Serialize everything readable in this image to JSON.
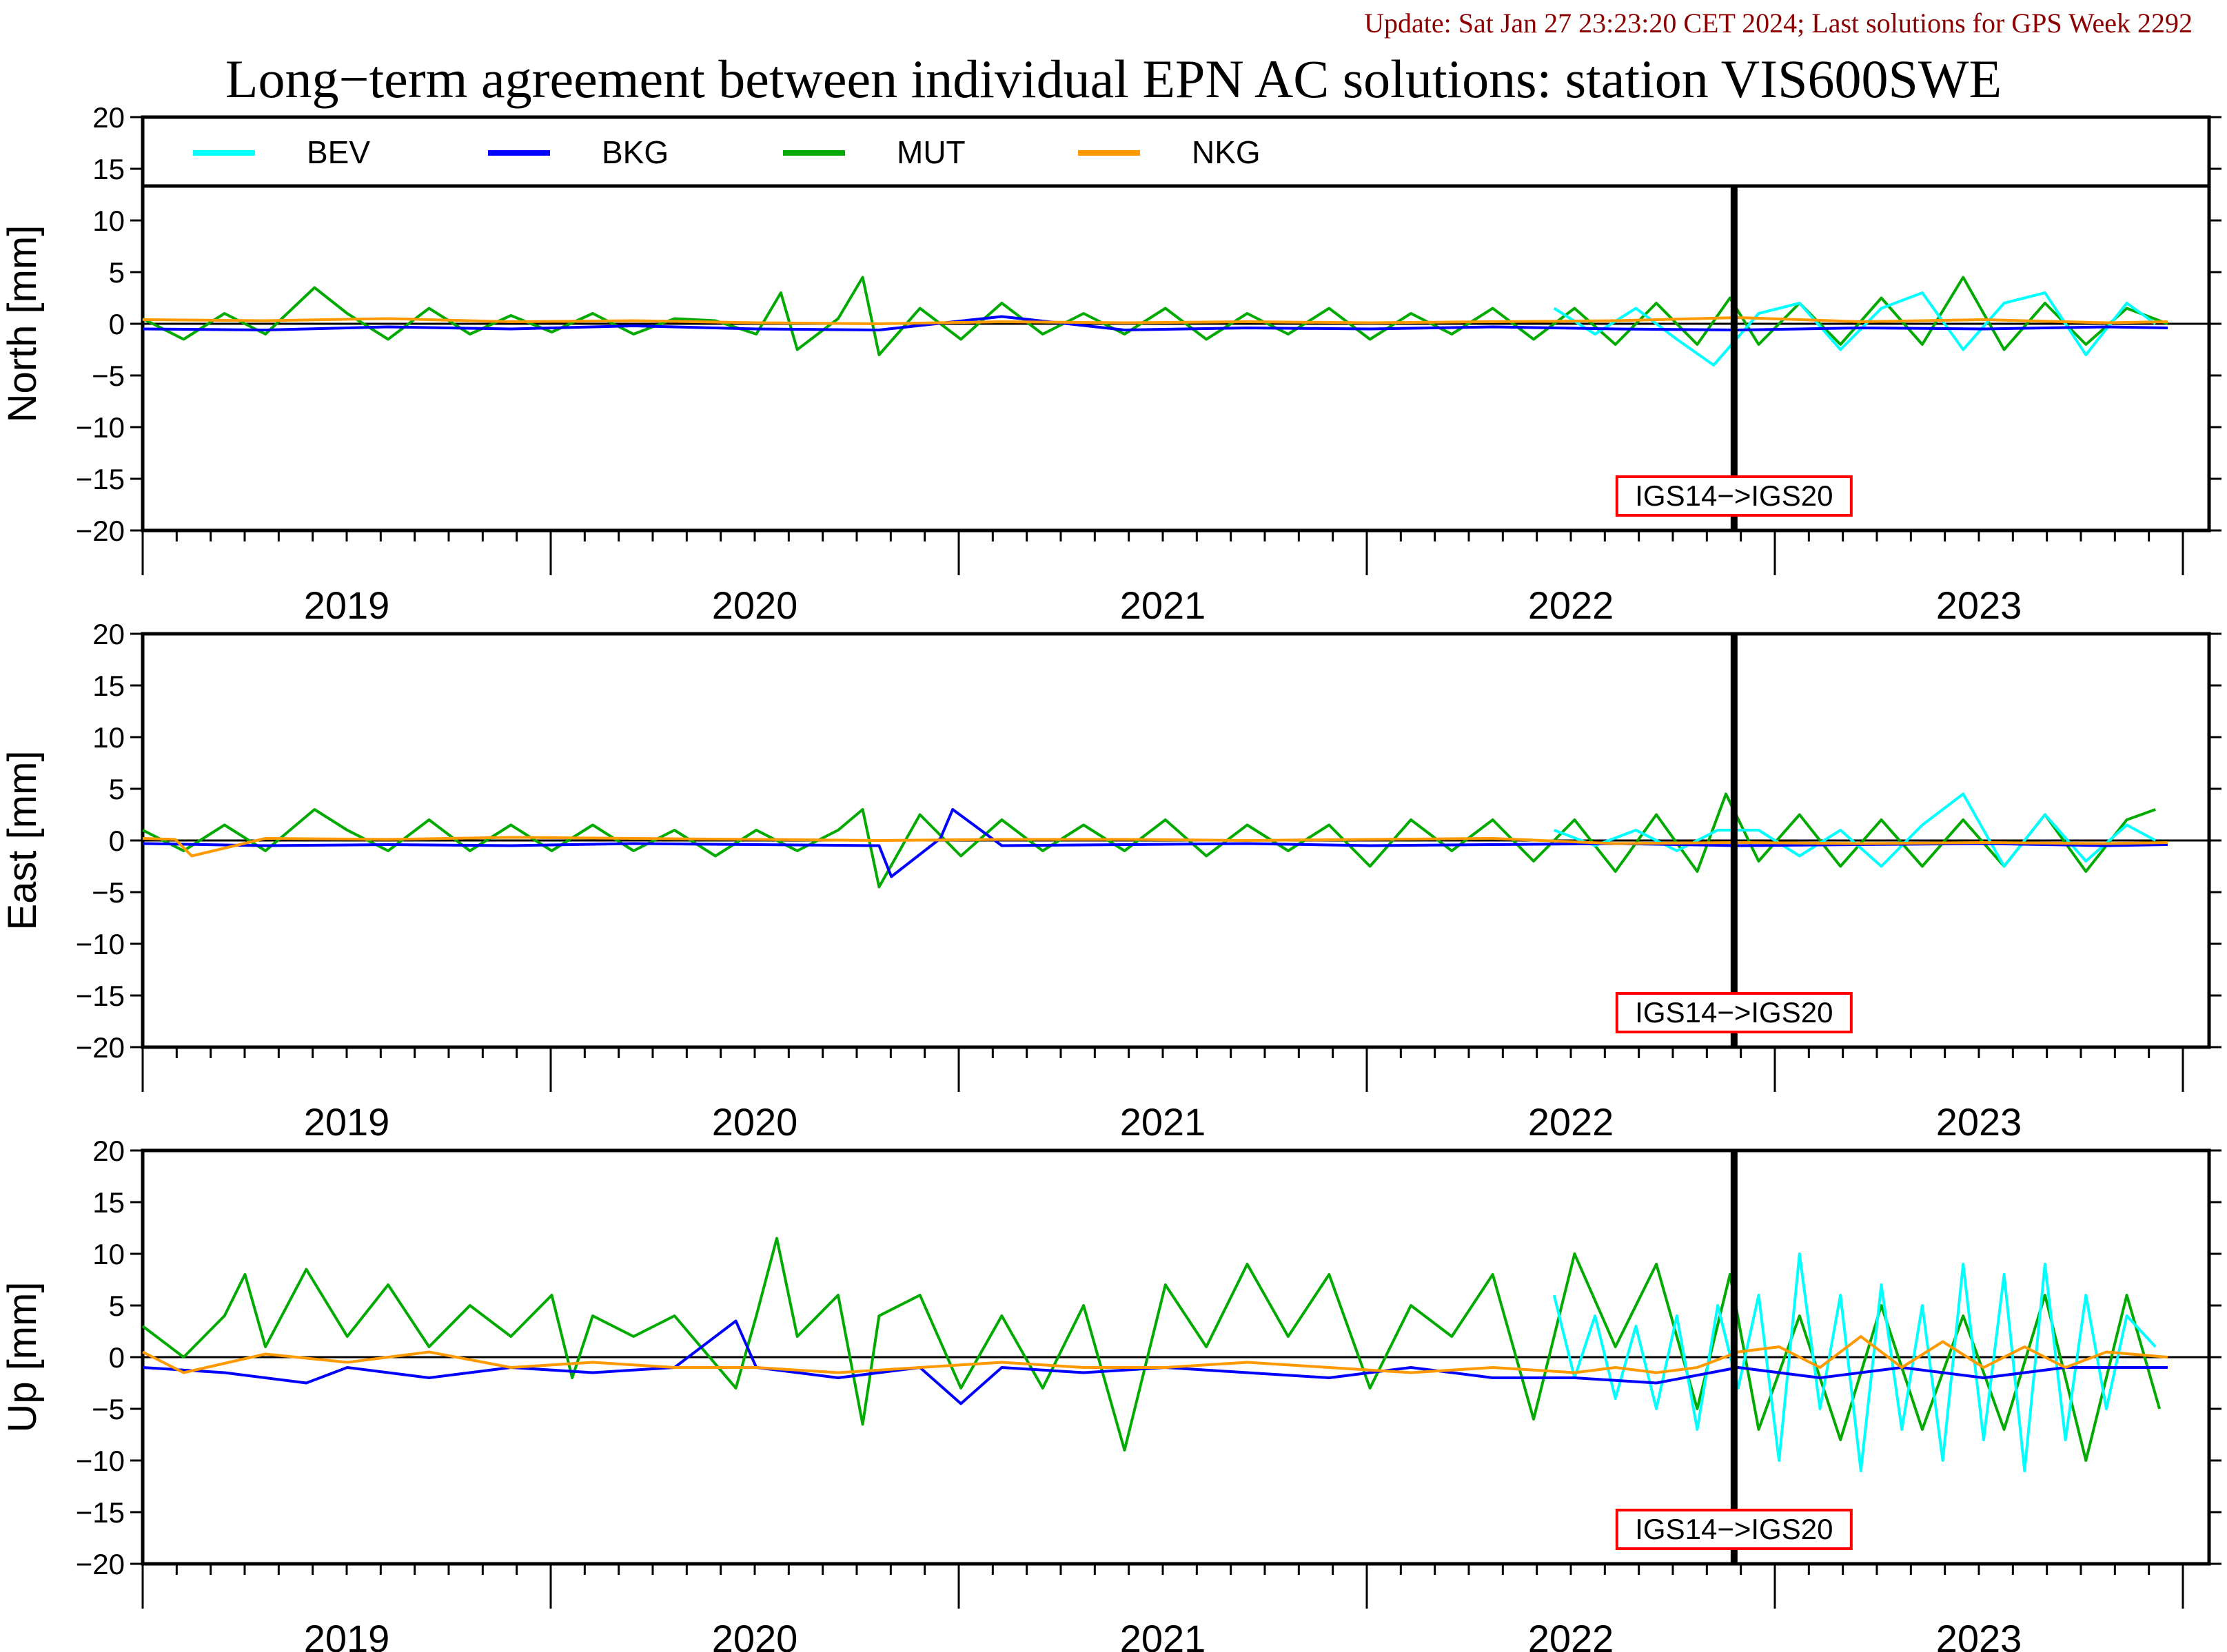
{
  "header": {
    "update_text": "Update: Sat Jan 27 23:23:20 CET 2024; Last solutions for GPS Week 2292",
    "title": "Long−term agreement between individual EPN AC solutions: station VIS600SWE"
  },
  "colors": {
    "BEV": "#00ffff",
    "BKG": "#0000ff",
    "MUT": "#00aa00",
    "NKG": "#ff9900",
    "update_text": "#8b0000",
    "marker_box": "#ff0000"
  },
  "chart_data": {
    "type": "line",
    "x_unit": "year",
    "xlim": [
      2018.5,
      2023.45
    ],
    "year_ticks": [
      "2019",
      "2020",
      "2021",
      "2022",
      "2023"
    ],
    "ylim": [
      -20,
      20
    ],
    "y_ticks": [
      "20",
      "15",
      "10",
      "5",
      "0",
      "−5",
      "−10",
      "−15",
      "−20"
    ],
    "legend": {
      "placement": "top",
      "entries": [
        {
          "name": "BEV",
          "color": "#00ffff"
        },
        {
          "name": "BKG",
          "color": "#0000ff"
        },
        {
          "name": "MUT",
          "color": "#00aa00"
        },
        {
          "name": "NKG",
          "color": "#ff9900"
        }
      ]
    },
    "reference_change": {
      "x": 2022.39,
      "label": "IGS14−>IGS20"
    },
    "panels": [
      {
        "ylabel": "North [mm]",
        "series": [
          {
            "name": "MUT",
            "x": [
              2018.5,
              2018.6,
              2018.7,
              2018.8,
              2018.92,
              2019.0,
              2019.1,
              2019.2,
              2019.3,
              2019.4,
              2019.5,
              2019.6,
              2019.7,
              2019.8,
              2019.9,
              2020.0,
              2020.06,
              2020.1,
              2020.2,
              2020.26,
              2020.3,
              2020.4,
              2020.5,
              2020.6,
              2020.7,
              2020.8,
              2020.9,
              2021.0,
              2021.1,
              2021.2,
              2021.3,
              2021.4,
              2021.5,
              2021.6,
              2021.7,
              2021.8,
              2021.9,
              2022.0,
              2022.1,
              2022.2,
              2022.3,
              2022.38,
              2022.45,
              2022.55,
              2022.65,
              2022.75,
              2022.85,
              2022.95,
              2023.05,
              2023.15,
              2023.25,
              2023.35,
              2023.45
            ],
            "y": [
              0.5,
              -1.5,
              1,
              -1,
              3.5,
              1,
              -1.5,
              1.5,
              -1,
              0.8,
              -0.8,
              1,
              -1,
              0.5,
              0.3,
              -1,
              3,
              -2.5,
              0.5,
              4.5,
              -3,
              1.5,
              -1.5,
              2,
              -1,
              1,
              -1,
              1.5,
              -1.5,
              1,
              -1,
              1.5,
              -1.5,
              1,
              -1,
              1.5,
              -1.5,
              1.5,
              -2,
              2,
              -2,
              2.5,
              -2,
              2,
              -2,
              2.5,
              -2,
              4.5,
              -2.5,
              2,
              -2,
              1.5,
              0
            ]
          },
          {
            "name": "BEV",
            "x": [
              2021.95,
              2022.05,
              2022.15,
              2022.25,
              2022.34,
              2022.45,
              2022.55,
              2022.65,
              2022.75,
              2022.85,
              2022.95,
              2023.05,
              2023.15,
              2023.25,
              2023.35,
              2023.42
            ],
            "y": [
              1.5,
              -1,
              1.5,
              -1.5,
              -4,
              1,
              2,
              -2.5,
              1.5,
              3,
              -2.5,
              2,
              3,
              -3,
              2,
              0
            ]
          },
          {
            "name": "BKG",
            "x": [
              2018.5,
              2018.8,
              2019.1,
              2019.4,
              2019.7,
              2020.0,
              2020.3,
              2020.6,
              2020.9,
              2021.2,
              2021.5,
              2021.8,
              2022.1,
              2022.4,
              2022.7,
              2023.0,
              2023.3,
              2023.45
            ],
            "y": [
              -0.5,
              -0.6,
              -0.3,
              -0.5,
              -0.2,
              -0.5,
              -0.6,
              0.7,
              -0.6,
              -0.4,
              -0.5,
              -0.3,
              -0.5,
              -0.6,
              -0.4,
              -0.5,
              -0.3,
              -0.4
            ]
          },
          {
            "name": "NKG",
            "x": [
              2018.5,
              2018.8,
              2019.1,
              2019.4,
              2019.7,
              2020.0,
              2020.3,
              2020.6,
              2020.9,
              2021.2,
              2021.5,
              2021.8,
              2022.1,
              2022.4,
              2022.7,
              2023.0,
              2023.3,
              2023.45
            ],
            "y": [
              0.4,
              0.3,
              0.5,
              0.2,
              0.3,
              0.1,
              0,
              0.2,
              0.1,
              0.2,
              0.1,
              0.2,
              0.3,
              0.6,
              0.2,
              0.4,
              0.1,
              0.2
            ]
          }
        ]
      },
      {
        "ylabel": "East [mm]",
        "series": [
          {
            "name": "MUT",
            "x": [
              2018.5,
              2018.6,
              2018.7,
              2018.8,
              2018.92,
              2019.0,
              2019.1,
              2019.2,
              2019.3,
              2019.4,
              2019.5,
              2019.6,
              2019.7,
              2019.8,
              2019.9,
              2020.0,
              2020.1,
              2020.2,
              2020.26,
              2020.3,
              2020.4,
              2020.5,
              2020.6,
              2020.7,
              2020.8,
              2020.9,
              2021.0,
              2021.1,
              2021.2,
              2021.3,
              2021.4,
              2021.5,
              2021.6,
              2021.7,
              2021.8,
              2021.9,
              2022.0,
              2022.1,
              2022.2,
              2022.3,
              2022.37,
              2022.45,
              2022.55,
              2022.65,
              2022.75,
              2022.85,
              2022.95,
              2023.05,
              2023.15,
              2023.25,
              2023.35,
              2023.42
            ],
            "y": [
              1,
              -1,
              1.5,
              -1,
              3,
              1,
              -1,
              2,
              -1,
              1.5,
              -1,
              1.5,
              -1,
              1,
              -1.5,
              1,
              -1,
              1,
              3,
              -4.5,
              2.5,
              -1.5,
              2,
              -1,
              1.5,
              -1,
              2,
              -1.5,
              1.5,
              -1,
              1.5,
              -2.5,
              2,
              -1,
              2,
              -2,
              2,
              -3,
              2.5,
              -3,
              4.5,
              -2,
              2.5,
              -2.5,
              2,
              -2.5,
              2,
              -2.5,
              2.5,
              -3,
              2,
              3
            ]
          },
          {
            "name": "BEV",
            "x": [
              2021.95,
              2022.05,
              2022.15,
              2022.25,
              2022.35,
              2022.45,
              2022.55,
              2022.65,
              2022.75,
              2022.85,
              2022.95,
              2023.05,
              2023.15,
              2023.25,
              2023.35,
              2023.42
            ],
            "y": [
              1,
              -0.5,
              1,
              -1,
              1,
              1,
              -1.5,
              1,
              -2.5,
              1.5,
              4.5,
              -2.5,
              2.5,
              -2,
              1.5,
              0
            ]
          },
          {
            "name": "BKG",
            "x": [
              2018.5,
              2018.8,
              2019.1,
              2019.4,
              2019.7,
              2020.0,
              2020.3,
              2020.33,
              2020.45,
              2020.48,
              2020.6,
              2020.9,
              2021.2,
              2021.5,
              2021.8,
              2022.1,
              2022.4,
              2022.7,
              2023.0,
              2023.3,
              2023.45
            ],
            "y": [
              -0.3,
              -0.5,
              -0.4,
              -0.5,
              -0.3,
              -0.4,
              -0.5,
              -3.5,
              0.2,
              3,
              -0.5,
              -0.4,
              -0.3,
              -0.5,
              -0.4,
              -0.3,
              -0.5,
              -0.4,
              -0.3,
              -0.5,
              -0.4
            ]
          },
          {
            "name": "NKG",
            "x": [
              2018.5,
              2018.58,
              2018.62,
              2018.8,
              2019.1,
              2019.4,
              2019.7,
              2020.0,
              2020.3,
              2020.6,
              2020.9,
              2021.2,
              2021.5,
              2021.8,
              2022.1,
              2022.4,
              2022.7,
              2023.0,
              2023.3,
              2023.45
            ],
            "y": [
              0.2,
              0.1,
              -1.5,
              0.2,
              0.1,
              0.3,
              0.2,
              0.1,
              0,
              0.1,
              0.1,
              0,
              0.1,
              0.2,
              -0.3,
              -0.2,
              -0.3,
              -0.2,
              -0.3,
              -0.2
            ]
          }
        ]
      },
      {
        "ylabel": "Up [mm]",
        "series": [
          {
            "name": "MUT",
            "x": [
              2018.5,
              2018.6,
              2018.7,
              2018.75,
              2018.8,
              2018.9,
              2019.0,
              2019.1,
              2019.2,
              2019.3,
              2019.4,
              2019.5,
              2019.55,
              2019.6,
              2019.7,
              2019.8,
              2019.95,
              2020.0,
              2020.05,
              2020.1,
              2020.2,
              2020.26,
              2020.3,
              2020.4,
              2020.5,
              2020.6,
              2020.7,
              2020.8,
              2020.9,
              2021.0,
              2021.1,
              2021.2,
              2021.3,
              2021.4,
              2021.5,
              2021.6,
              2021.7,
              2021.8,
              2021.9,
              2022.0,
              2022.1,
              2022.2,
              2022.3,
              2022.38,
              2022.45,
              2022.55,
              2022.65,
              2022.75,
              2022.85,
              2022.95,
              2023.05,
              2023.15,
              2023.25,
              2023.35,
              2023.43
            ],
            "y": [
              3,
              0,
              4,
              8,
              1,
              8.5,
              2,
              7,
              1,
              5,
              2,
              6,
              -2,
              4,
              2,
              4,
              -3,
              4,
              11.5,
              2,
              6,
              -6.5,
              4,
              6,
              -3,
              4,
              -3,
              5,
              -9,
              7,
              1,
              9,
              2,
              8,
              -3,
              5,
              2,
              8,
              -6,
              10,
              1,
              9,
              -5,
              8,
              -7,
              4,
              -8,
              5,
              -7,
              4,
              -7,
              6,
              -10,
              6,
              -5
            ]
          },
          {
            "name": "BEV",
            "x": [
              2021.95,
              2022.0,
              2022.05,
              2022.1,
              2022.15,
              2022.2,
              2022.25,
              2022.3,
              2022.35,
              2022.4,
              2022.45,
              2022.5,
              2022.55,
              2022.6,
              2022.65,
              2022.7,
              2022.75,
              2022.8,
              2022.85,
              2022.9,
              2022.95,
              2023.0,
              2023.05,
              2023.1,
              2023.15,
              2023.2,
              2023.25,
              2023.3,
              2023.35,
              2023.42
            ],
            "y": [
              6,
              -2,
              4,
              -4,
              3,
              -5,
              4,
              -7,
              5,
              -3,
              6,
              -10,
              10,
              -5,
              6,
              -11,
              7,
              -7,
              5,
              -10,
              9,
              -8,
              8,
              -11,
              9,
              -8,
              6,
              -5,
              4,
              1
            ]
          },
          {
            "name": "BKG",
            "x": [
              2018.5,
              2018.7,
              2018.9,
              2019.0,
              2019.2,
              2019.4,
              2019.6,
              2019.8,
              2019.95,
              2020.0,
              2020.2,
              2020.4,
              2020.5,
              2020.6,
              2020.8,
              2021.0,
              2021.2,
              2021.4,
              2021.6,
              2021.8,
              2022.0,
              2022.2,
              2022.4,
              2022.6,
              2022.8,
              2023.0,
              2023.2,
              2023.45
            ],
            "y": [
              -1,
              -1.5,
              -2.5,
              -1,
              -2,
              -1,
              -1.5,
              -1,
              3.5,
              -1,
              -2,
              -1,
              -4.5,
              -1,
              -1.5,
              -1,
              -1.5,
              -2,
              -1,
              -2,
              -2,
              -2.5,
              -1,
              -2,
              -1,
              -2,
              -1,
              -1
            ]
          },
          {
            "name": "NKG",
            "x": [
              2018.5,
              2018.6,
              2018.8,
              2019.0,
              2019.2,
              2019.4,
              2019.6,
              2019.8,
              2020.0,
              2020.2,
              2020.4,
              2020.6,
              2020.8,
              2021.0,
              2021.2,
              2021.4,
              2021.6,
              2021.8,
              2022.0,
              2022.1,
              2022.2,
              2022.3,
              2022.4,
              2022.5,
              2022.6,
              2022.7,
              2022.8,
              2022.9,
              2023.0,
              2023.1,
              2023.2,
              2023.3,
              2023.45
            ],
            "y": [
              0.5,
              -1.5,
              0.3,
              -0.5,
              0.5,
              -1,
              -0.5,
              -1,
              -1,
              -1.5,
              -1,
              -0.5,
              -1,
              -1,
              -0.5,
              -1,
              -1.5,
              -1,
              -1.5,
              -1,
              -1.5,
              -1,
              0.5,
              1,
              -1,
              2,
              -1,
              1.5,
              -1,
              1,
              -1,
              0.5,
              0
            ]
          }
        ]
      }
    ]
  }
}
